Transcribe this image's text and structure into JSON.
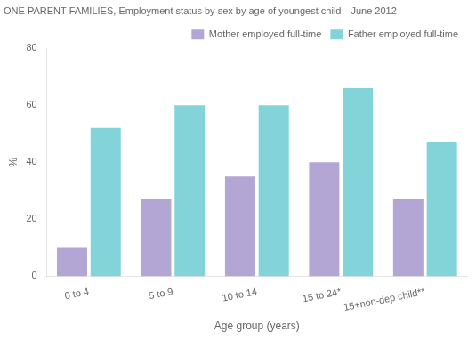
{
  "chart_data": {
    "type": "bar",
    "title": "ONE PARENT FAMILIES, Employment status by sex by age of youngest child—June 2012",
    "xlabel": "Age group (years)",
    "ylabel": "%",
    "categories": [
      "0 to 4",
      "5 to 9",
      "10 to 14",
      "15 to 24*",
      "15+non-dep child**"
    ],
    "series": [
      {
        "name": "Mother employed full-time",
        "color": "#b3a6d4",
        "values": [
          10,
          27,
          35,
          40,
          27
        ]
      },
      {
        "name": "Father employed full-time",
        "color": "#82d4d8",
        "values": [
          52,
          60,
          60,
          66,
          47
        ]
      }
    ],
    "ylim": [
      0,
      80
    ],
    "yticks": [
      0,
      20,
      40,
      60,
      80
    ],
    "grid": false,
    "legend": "upper right"
  }
}
